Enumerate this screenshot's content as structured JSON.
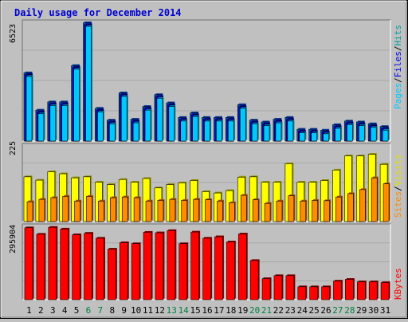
{
  "title": "Daily usage for December 2014",
  "colors": {
    "background": "#c0c0c0",
    "plot_bg": "#c0c0c0",
    "grid": "#a8a8a8",
    "title": "#0000d0",
    "hits": "#00cccc",
    "hits_top": "#0055cc",
    "files": "#0000ee",
    "pages": "#00c8ff",
    "visits": "#ffff00",
    "sites": "#ff8c00",
    "kbytes": "#ff0000",
    "weekday_label": "#000000",
    "weekend_label": "#008040"
  },
  "chart_data": [
    {
      "type": "bar",
      "panel": "hits-files-pages",
      "ymax_label": "6523",
      "ylim": [
        0,
        6523
      ],
      "legend": {
        "pages": "Pages",
        "sep1": "/",
        "files": "Files",
        "sep2": "/",
        "hits": "Hits"
      },
      "categories": [
        "1",
        "2",
        "3",
        "4",
        "5",
        "6",
        "7",
        "8",
        "9",
        "10",
        "11",
        "12",
        "13",
        "14",
        "15",
        "16",
        "17",
        "18",
        "19",
        "20",
        "21",
        "22",
        "23",
        "24",
        "25",
        "26",
        "27",
        "28",
        "29",
        "30",
        "31"
      ],
      "weekend_days": [
        "6",
        "7",
        "13",
        "14",
        "20",
        "21",
        "27",
        "28"
      ],
      "series": [
        {
          "name": "Hits",
          "values": [
            3750,
            1700,
            2150,
            2150,
            4150,
            6500,
            1800,
            1150,
            2650,
            1200,
            1900,
            2550,
            2100,
            1300,
            1550,
            1300,
            1300,
            1300,
            2000,
            1150,
            1050,
            1200,
            1300,
            650,
            650,
            600,
            900,
            1100,
            1050,
            950,
            800
          ]
        },
        {
          "name": "Files",
          "values": [
            3650,
            1600,
            2050,
            2050,
            4050,
            6400,
            1700,
            1050,
            2550,
            1100,
            1800,
            2450,
            2000,
            1200,
            1450,
            1200,
            1200,
            1200,
            1900,
            1050,
            950,
            1100,
            1200,
            550,
            550,
            500,
            800,
            1000,
            950,
            850,
            700
          ]
        },
        {
          "name": "Pages",
          "values": [
            3550,
            1500,
            1950,
            1950,
            3950,
            6300,
            1600,
            950,
            2450,
            1000,
            1700,
            2350,
            1900,
            1100,
            1350,
            1100,
            1100,
            1100,
            1800,
            950,
            850,
            1000,
            1100,
            450,
            450,
            400,
            700,
            900,
            850,
            750,
            600
          ]
        }
      ]
    },
    {
      "type": "bar",
      "panel": "visits-sites",
      "ymax_label": "225",
      "ylim": [
        0,
        225
      ],
      "legend": {
        "sites": "Sites",
        "sep": "/",
        "visits": "Visits"
      },
      "categories": [
        "1",
        "2",
        "3",
        "4",
        "5",
        "6",
        "7",
        "8",
        "9",
        "10",
        "11",
        "12",
        "13",
        "14",
        "15",
        "16",
        "17",
        "18",
        "19",
        "20",
        "21",
        "22",
        "23",
        "24",
        "25",
        "26",
        "27",
        "28",
        "29",
        "30",
        "31"
      ],
      "series": [
        {
          "name": "Visits",
          "values": [
            133,
            123,
            148,
            142,
            130,
            133,
            117,
            110,
            125,
            117,
            128,
            100,
            110,
            115,
            122,
            89,
            85,
            92,
            132,
            133,
            117,
            117,
            172,
            117,
            117,
            122,
            153,
            195,
            195,
            200,
            170
          ]
        },
        {
          "name": "Sites",
          "values": [
            59,
            66,
            71,
            75,
            61,
            75,
            61,
            71,
            73,
            71,
            61,
            63,
            66,
            63,
            66,
            65,
            61,
            56,
            78,
            65,
            54,
            61,
            77,
            61,
            63,
            62,
            73,
            83,
            95,
            130,
            112
          ]
        }
      ]
    },
    {
      "type": "bar",
      "panel": "kbytes",
      "ymax_label": "295904",
      "ylim": [
        0,
        295904
      ],
      "legend": {
        "kbytes": "KBytes"
      },
      "categories": [
        "1",
        "2",
        "3",
        "4",
        "5",
        "6",
        "7",
        "8",
        "9",
        "10",
        "11",
        "12",
        "13",
        "14",
        "15",
        "16",
        "17",
        "18",
        "19",
        "20",
        "21",
        "22",
        "23",
        "24",
        "25",
        "26",
        "27",
        "28",
        "29",
        "30",
        "31"
      ],
      "series": [
        {
          "name": "KBytes",
          "values": [
            290000,
            264000,
            292000,
            285000,
            262000,
            268000,
            248000,
            204000,
            230000,
            226000,
            272000,
            270000,
            279000,
            226000,
            273000,
            248000,
            254000,
            233000,
            265000,
            158000,
            85000,
            97000,
            97000,
            52000,
            52000,
            52000,
            75000,
            82000,
            72000,
            72000,
            69000
          ]
        }
      ]
    }
  ]
}
